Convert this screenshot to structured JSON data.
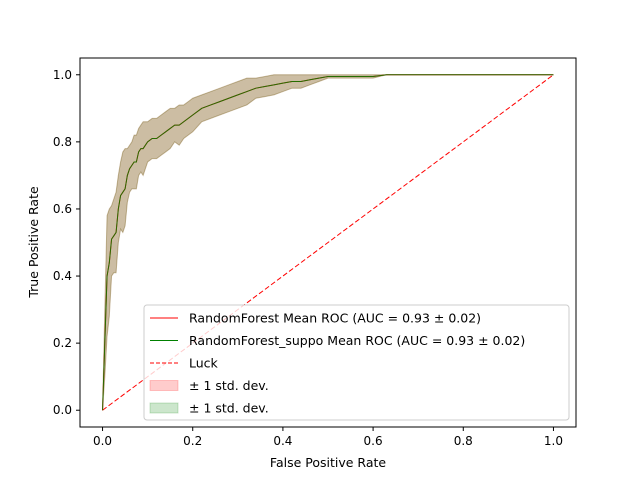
{
  "chart_data": {
    "type": "line",
    "title": "",
    "xlabel": "False Positive Rate",
    "ylabel": "True Positive Rate",
    "xlim": [
      -0.05,
      1.05
    ],
    "ylim": [
      -0.05,
      1.05
    ],
    "xticks": [
      "0.0",
      "0.2",
      "0.4",
      "0.6",
      "0.8",
      "1.0"
    ],
    "yticks": [
      "0.0",
      "0.2",
      "0.4",
      "0.6",
      "0.8",
      "1.0"
    ],
    "grid": false,
    "legend_position": "lower-right",
    "series": [
      {
        "name": "RandomForest Mean ROC (AUC = 0.93 ± 0.02)",
        "color": "#ff0000",
        "style": "solid",
        "x": [
          0.0,
          0.005,
          0.01,
          0.015,
          0.02,
          0.025,
          0.03,
          0.035,
          0.04,
          0.045,
          0.05,
          0.055,
          0.06,
          0.065,
          0.07,
          0.075,
          0.08,
          0.085,
          0.09,
          0.1,
          0.11,
          0.12,
          0.13,
          0.14,
          0.15,
          0.16,
          0.17,
          0.18,
          0.19,
          0.2,
          0.22,
          0.24,
          0.26,
          0.28,
          0.3,
          0.32,
          0.34,
          0.36,
          0.38,
          0.4,
          0.42,
          0.44,
          0.46,
          0.48,
          0.5,
          0.55,
          0.6,
          0.63,
          0.7,
          0.8,
          0.9,
          1.0
        ],
        "y": [
          0.0,
          0.2,
          0.4,
          0.44,
          0.51,
          0.52,
          0.53,
          0.6,
          0.64,
          0.65,
          0.66,
          0.7,
          0.72,
          0.73,
          0.74,
          0.74,
          0.77,
          0.78,
          0.78,
          0.8,
          0.81,
          0.81,
          0.82,
          0.83,
          0.84,
          0.85,
          0.85,
          0.86,
          0.87,
          0.88,
          0.9,
          0.91,
          0.92,
          0.93,
          0.94,
          0.95,
          0.96,
          0.965,
          0.97,
          0.975,
          0.98,
          0.98,
          0.985,
          0.99,
          0.995,
          0.995,
          0.995,
          1.0,
          1.0,
          1.0,
          1.0,
          1.0
        ]
      },
      {
        "name": "RandomForest_suppo Mean ROC (AUC = 0.93 ± 0.02)",
        "color": "#008000",
        "style": "solid",
        "x": [
          0.0,
          0.005,
          0.01,
          0.015,
          0.02,
          0.025,
          0.03,
          0.035,
          0.04,
          0.045,
          0.05,
          0.055,
          0.06,
          0.065,
          0.07,
          0.075,
          0.08,
          0.085,
          0.09,
          0.1,
          0.11,
          0.12,
          0.13,
          0.14,
          0.15,
          0.16,
          0.17,
          0.18,
          0.19,
          0.2,
          0.22,
          0.24,
          0.26,
          0.28,
          0.3,
          0.32,
          0.34,
          0.36,
          0.38,
          0.4,
          0.42,
          0.44,
          0.46,
          0.48,
          0.5,
          0.55,
          0.6,
          0.63,
          0.7,
          0.8,
          0.9,
          1.0
        ],
        "y": [
          0.0,
          0.2,
          0.4,
          0.44,
          0.51,
          0.52,
          0.53,
          0.6,
          0.64,
          0.65,
          0.66,
          0.7,
          0.72,
          0.73,
          0.74,
          0.74,
          0.77,
          0.78,
          0.78,
          0.8,
          0.81,
          0.81,
          0.82,
          0.83,
          0.84,
          0.85,
          0.85,
          0.86,
          0.87,
          0.88,
          0.9,
          0.91,
          0.92,
          0.93,
          0.94,
          0.95,
          0.96,
          0.965,
          0.97,
          0.975,
          0.98,
          0.98,
          0.985,
          0.99,
          0.995,
          0.995,
          0.995,
          1.0,
          1.0,
          1.0,
          1.0,
          1.0
        ]
      },
      {
        "name": "Luck",
        "color": "#ff0000",
        "style": "dashed",
        "x": [
          0.0,
          1.0
        ],
        "y": [
          0.0,
          1.0
        ]
      }
    ],
    "bands": [
      {
        "name": "± 1 std. dev.",
        "fill_color": "#ff0000",
        "opacity": 0.2,
        "x": [
          0.0,
          0.005,
          0.01,
          0.015,
          0.02,
          0.025,
          0.03,
          0.035,
          0.04,
          0.045,
          0.05,
          0.055,
          0.06,
          0.065,
          0.07,
          0.075,
          0.08,
          0.085,
          0.09,
          0.1,
          0.11,
          0.12,
          0.13,
          0.14,
          0.15,
          0.16,
          0.17,
          0.18,
          0.19,
          0.2,
          0.22,
          0.24,
          0.26,
          0.28,
          0.3,
          0.32,
          0.34,
          0.36,
          0.38,
          0.4,
          0.42,
          0.44,
          0.46,
          0.48,
          0.5,
          0.55,
          0.6,
          0.63,
          0.7,
          0.8,
          0.9,
          1.0
        ],
        "upper": [
          0.0,
          0.3,
          0.58,
          0.6,
          0.61,
          0.63,
          0.65,
          0.7,
          0.74,
          0.77,
          0.78,
          0.78,
          0.79,
          0.8,
          0.82,
          0.82,
          0.84,
          0.85,
          0.86,
          0.86,
          0.87,
          0.87,
          0.88,
          0.89,
          0.9,
          0.9,
          0.91,
          0.91,
          0.92,
          0.93,
          0.94,
          0.95,
          0.96,
          0.97,
          0.98,
          0.99,
          0.99,
          0.995,
          1.0,
          1.0,
          1.0,
          1.0,
          1.0,
          1.0,
          1.0,
          1.0,
          1.0,
          1.0,
          1.0,
          1.0,
          1.0,
          1.0
        ],
        "lower": [
          0.0,
          0.1,
          0.22,
          0.28,
          0.4,
          0.41,
          0.41,
          0.5,
          0.54,
          0.53,
          0.55,
          0.62,
          0.65,
          0.66,
          0.66,
          0.66,
          0.7,
          0.71,
          0.7,
          0.74,
          0.75,
          0.75,
          0.76,
          0.77,
          0.78,
          0.8,
          0.79,
          0.81,
          0.82,
          0.83,
          0.86,
          0.87,
          0.88,
          0.89,
          0.9,
          0.91,
          0.93,
          0.935,
          0.94,
          0.95,
          0.96,
          0.96,
          0.97,
          0.98,
          0.99,
          0.99,
          0.99,
          1.0,
          1.0,
          1.0,
          1.0,
          1.0
        ]
      },
      {
        "name": "± 1 std. dev.",
        "fill_color": "#008000",
        "opacity": 0.2,
        "x": [
          0.0,
          0.005,
          0.01,
          0.015,
          0.02,
          0.025,
          0.03,
          0.035,
          0.04,
          0.045,
          0.05,
          0.055,
          0.06,
          0.065,
          0.07,
          0.075,
          0.08,
          0.085,
          0.09,
          0.1,
          0.11,
          0.12,
          0.13,
          0.14,
          0.15,
          0.16,
          0.17,
          0.18,
          0.19,
          0.2,
          0.22,
          0.24,
          0.26,
          0.28,
          0.3,
          0.32,
          0.34,
          0.36,
          0.38,
          0.4,
          0.42,
          0.44,
          0.46,
          0.48,
          0.5,
          0.55,
          0.6,
          0.63,
          0.7,
          0.8,
          0.9,
          1.0
        ],
        "upper": [
          0.0,
          0.3,
          0.58,
          0.6,
          0.61,
          0.63,
          0.65,
          0.7,
          0.74,
          0.77,
          0.78,
          0.78,
          0.79,
          0.8,
          0.82,
          0.82,
          0.84,
          0.85,
          0.86,
          0.86,
          0.87,
          0.87,
          0.88,
          0.89,
          0.9,
          0.9,
          0.91,
          0.91,
          0.92,
          0.93,
          0.94,
          0.95,
          0.96,
          0.97,
          0.98,
          0.99,
          0.99,
          0.995,
          1.0,
          1.0,
          1.0,
          1.0,
          1.0,
          1.0,
          1.0,
          1.0,
          1.0,
          1.0,
          1.0,
          1.0,
          1.0,
          1.0
        ],
        "lower": [
          0.0,
          0.1,
          0.22,
          0.28,
          0.4,
          0.41,
          0.41,
          0.5,
          0.54,
          0.53,
          0.55,
          0.62,
          0.65,
          0.66,
          0.66,
          0.66,
          0.7,
          0.71,
          0.7,
          0.74,
          0.75,
          0.75,
          0.76,
          0.77,
          0.78,
          0.8,
          0.79,
          0.81,
          0.82,
          0.83,
          0.86,
          0.87,
          0.88,
          0.89,
          0.9,
          0.91,
          0.93,
          0.935,
          0.94,
          0.95,
          0.96,
          0.96,
          0.97,
          0.98,
          0.99,
          0.99,
          0.99,
          1.0,
          1.0,
          1.0,
          1.0,
          1.0
        ]
      }
    ],
    "legend": [
      {
        "label": "RandomForest Mean ROC (AUC = 0.93 ± 0.02)",
        "kind": "line",
        "color": "#ff0000",
        "style": "solid"
      },
      {
        "label": "RandomForest_suppo Mean ROC (AUC = 0.93 ± 0.02)",
        "kind": "line",
        "color": "#008000",
        "style": "solid"
      },
      {
        "label": "Luck",
        "kind": "line",
        "color": "#ff0000",
        "style": "dashed"
      },
      {
        "label": "± 1 std. dev.",
        "kind": "patch",
        "color": "#ff0000"
      },
      {
        "label": "± 1 std. dev.",
        "kind": "patch",
        "color": "#008000"
      }
    ]
  }
}
